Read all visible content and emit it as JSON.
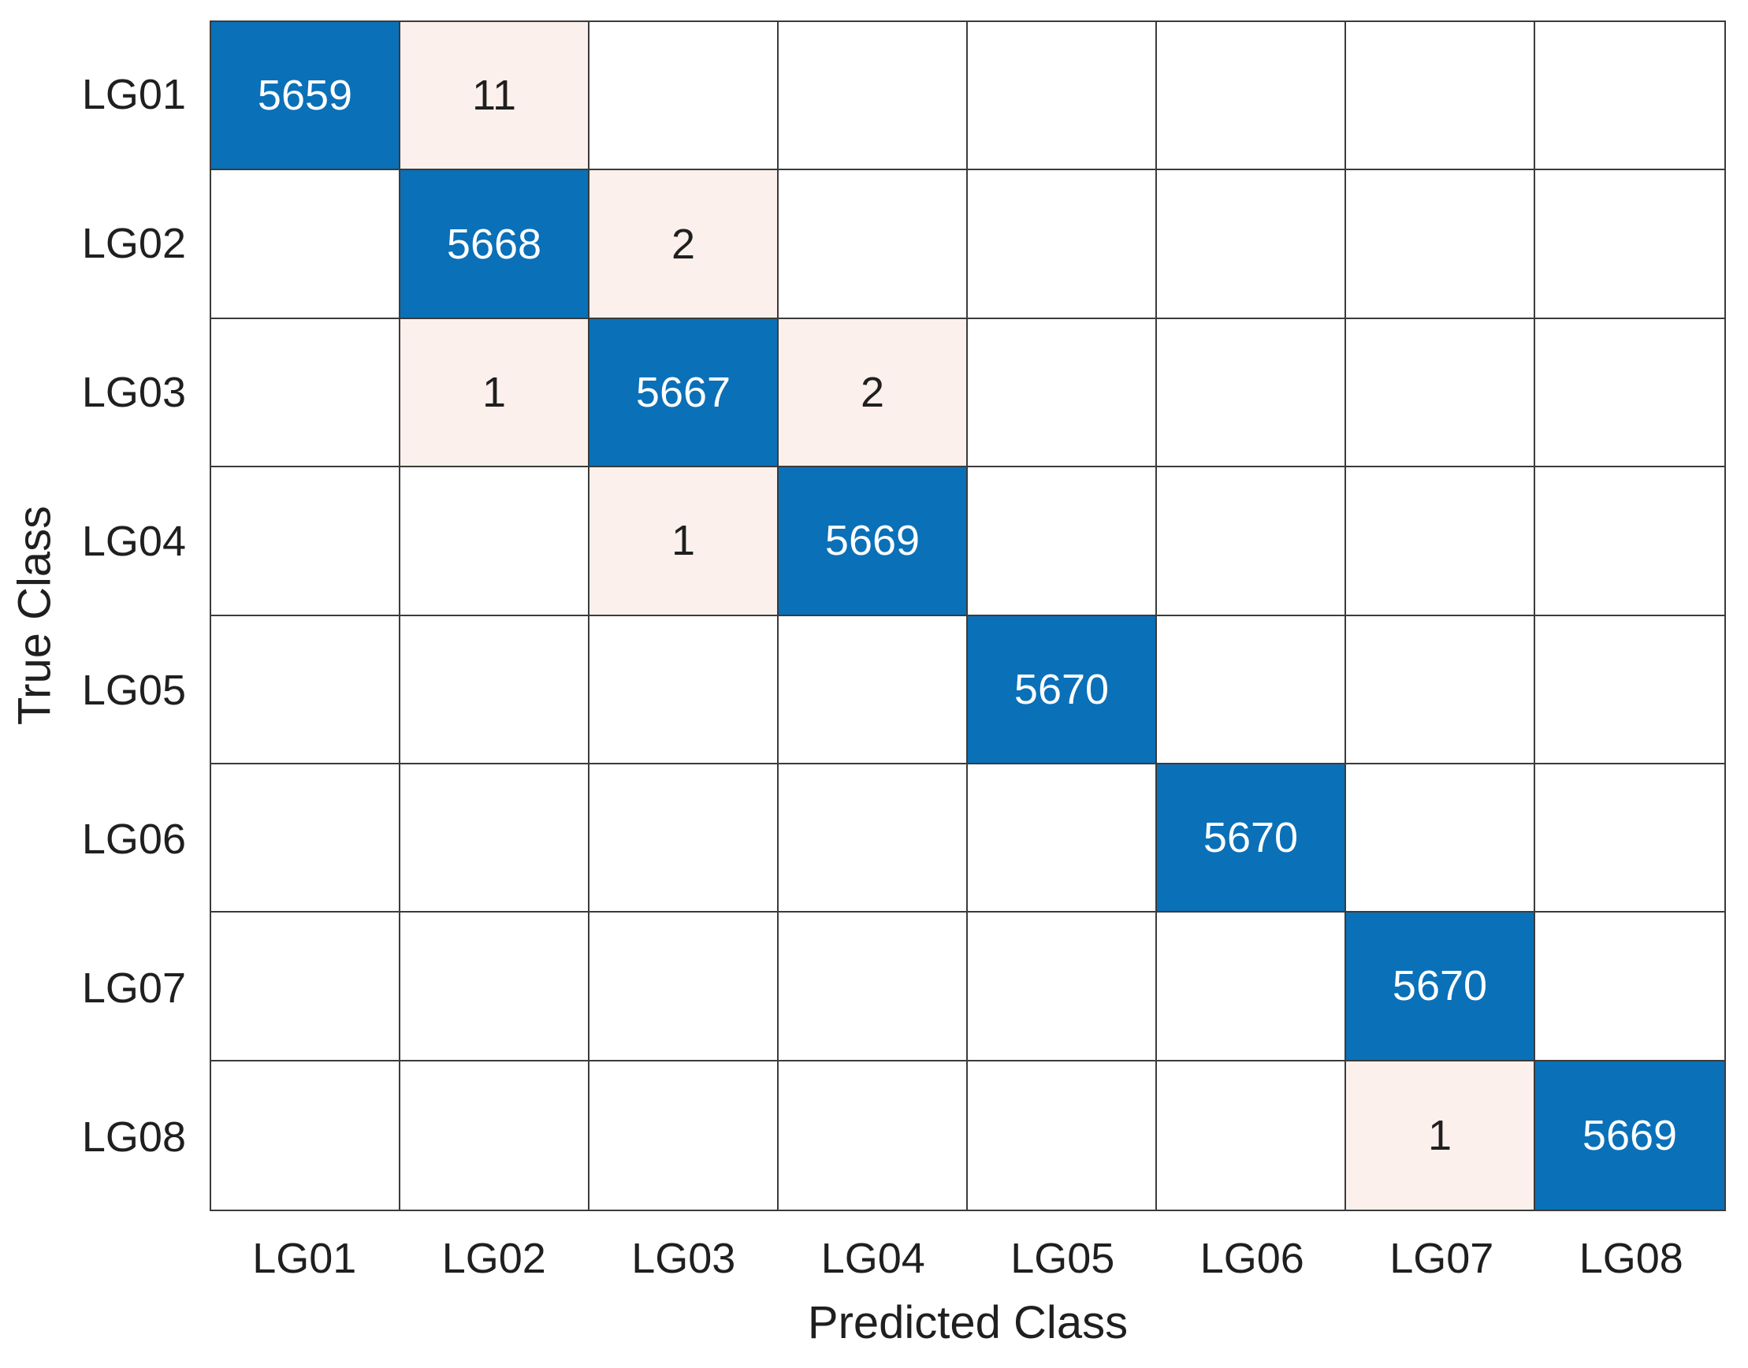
{
  "chart_data": {
    "type": "heatmap",
    "subtype": "confusion-matrix",
    "title": "",
    "xlabel": "Predicted Class",
    "ylabel": "True Class",
    "classes": [
      "LG01",
      "LG02",
      "LG03",
      "LG04",
      "LG05",
      "LG06",
      "LG07",
      "LG08"
    ],
    "matrix": [
      [
        5659,
        11,
        0,
        0,
        0,
        0,
        0,
        0
      ],
      [
        0,
        5668,
        2,
        0,
        0,
        0,
        0,
        0
      ],
      [
        0,
        1,
        5667,
        2,
        0,
        0,
        0,
        0
      ],
      [
        0,
        0,
        1,
        5669,
        0,
        0,
        0,
        0
      ],
      [
        0,
        0,
        0,
        0,
        5670,
        0,
        0,
        0
      ],
      [
        0,
        0,
        0,
        0,
        0,
        5670,
        0,
        0
      ],
      [
        0,
        0,
        0,
        0,
        0,
        0,
        5670,
        0
      ],
      [
        0,
        0,
        0,
        0,
        0,
        0,
        1,
        5669
      ]
    ],
    "layout": {
      "grid_on": true,
      "legend": "none",
      "zero_cells_blank": true
    },
    "colors": {
      "diagonal_fill": "#0a70b8",
      "offdiagonal_nonzero_fill": "#fbf0eb",
      "zero_fill": "#ffffff",
      "grid_line": "#3b3b3b",
      "diagonal_text": "#ffffff",
      "label_text": "#1f1f1f"
    }
  }
}
